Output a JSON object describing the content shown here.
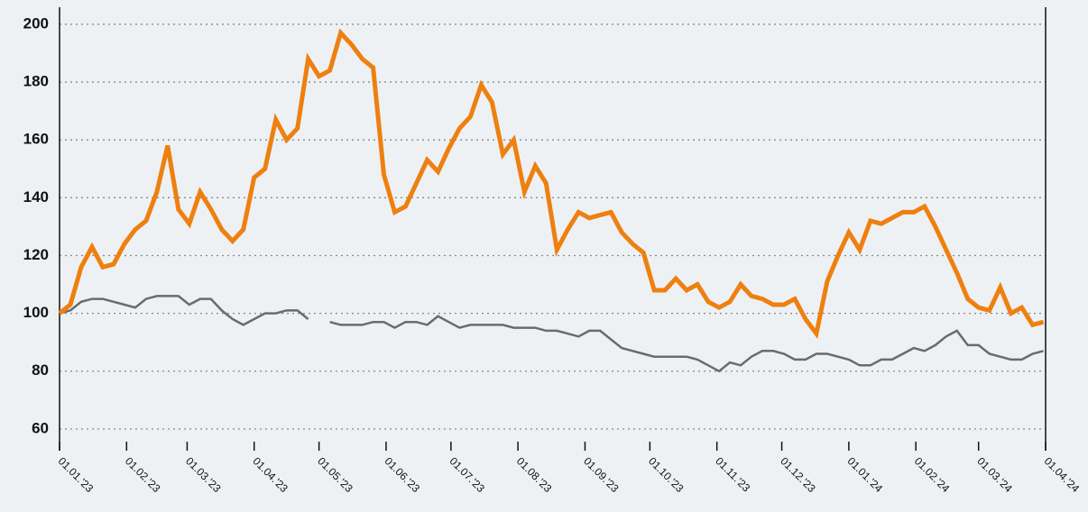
{
  "chart_data": {
    "type": "line",
    "x": [
      "2023-01-01",
      "2023-01-06",
      "2023-01-11",
      "2023-01-16",
      "2023-01-21",
      "2023-01-26",
      "2023-01-31",
      "2023-02-05",
      "2023-02-10",
      "2023-02-15",
      "2023-02-20",
      "2023-02-25",
      "2023-03-02",
      "2023-03-07",
      "2023-03-12",
      "2023-03-17",
      "2023-03-22",
      "2023-03-27",
      "2023-04-01",
      "2023-04-06",
      "2023-04-11",
      "2023-04-16",
      "2023-04-21",
      "2023-04-26",
      "2023-05-01",
      "2023-05-06",
      "2023-05-11",
      "2023-05-16",
      "2023-05-21",
      "2023-05-26",
      "2023-05-31",
      "2023-06-05",
      "2023-06-10",
      "2023-06-15",
      "2023-06-20",
      "2023-06-25",
      "2023-06-30",
      "2023-07-05",
      "2023-07-10",
      "2023-07-15",
      "2023-07-20",
      "2023-07-25",
      "2023-07-30",
      "2023-08-04",
      "2023-08-09",
      "2023-08-14",
      "2023-08-19",
      "2023-08-24",
      "2023-08-29",
      "2023-09-03",
      "2023-09-08",
      "2023-09-13",
      "2023-09-18",
      "2023-09-23",
      "2023-09-28",
      "2023-10-03",
      "2023-10-08",
      "2023-10-13",
      "2023-10-18",
      "2023-10-23",
      "2023-10-28",
      "2023-11-02",
      "2023-11-07",
      "2023-11-12",
      "2023-11-17",
      "2023-11-22",
      "2023-11-27",
      "2023-12-02",
      "2023-12-07",
      "2023-12-12",
      "2023-12-17",
      "2023-12-22",
      "2023-12-27",
      "2024-01-01",
      "2024-01-06",
      "2024-01-11",
      "2024-01-16",
      "2024-01-21",
      "2024-01-26",
      "2024-01-31",
      "2024-02-05",
      "2024-02-10",
      "2024-02-15",
      "2024-02-20",
      "2024-02-25",
      "2024-03-01",
      "2024-03-06",
      "2024-03-11",
      "2024-03-16",
      "2024-03-21",
      "2024-03-26",
      "2024-03-31"
    ],
    "series": [
      {
        "color": "#ee8010",
        "values": [
          100,
          103,
          116,
          123,
          116,
          117,
          124,
          129,
          132,
          142,
          158,
          136,
          131,
          142,
          136,
          129,
          125,
          129,
          147,
          150,
          167,
          160,
          164,
          188,
          182,
          184,
          197,
          193,
          188,
          185,
          148,
          135,
          137,
          145,
          153,
          149,
          157,
          164,
          168,
          179,
          173,
          155,
          160,
          142,
          151,
          145,
          122,
          129,
          135,
          133,
          134,
          135,
          128,
          124,
          121,
          108,
          108,
          112,
          108,
          110,
          104,
          102,
          104,
          110,
          106,
          105,
          103,
          103,
          105,
          98,
          93,
          111,
          120,
          128,
          122,
          132,
          131,
          133,
          135,
          135,
          137,
          130,
          122,
          114,
          105,
          102,
          101,
          109,
          100,
          102,
          96,
          97
        ]
      },
      {
        "color": "#6b6b6b",
        "values": [
          100,
          101,
          104,
          105,
          105,
          104,
          103,
          102,
          105,
          106,
          106,
          106,
          103,
          105,
          105,
          101,
          98,
          96,
          98,
          100,
          100,
          101,
          101,
          98,
          null,
          97,
          96,
          96,
          96,
          97,
          97,
          95,
          97,
          97,
          96,
          99,
          97,
          95,
          96,
          96,
          96,
          96,
          95,
          95,
          95,
          94,
          94,
          93,
          92,
          94,
          94,
          91,
          88,
          87,
          86,
          85,
          85,
          85,
          85,
          84,
          82,
          80,
          83,
          82,
          85,
          87,
          87,
          86,
          84,
          84,
          86,
          86,
          85,
          84,
          82,
          82,
          84,
          84,
          86,
          88,
          87,
          89,
          92,
          94,
          89,
          89,
          86,
          85,
          84,
          84,
          86,
          87
        ]
      }
    ],
    "xlim": [
      "2023-01-01",
      "2024-04-01"
    ],
    "xticks": [
      {
        "value": "2023-01-01",
        "label": "01.01.'23"
      },
      {
        "value": "2023-02-01",
        "label": "01.02.'23"
      },
      {
        "value": "2023-03-01",
        "label": "01.03.'23"
      },
      {
        "value": "2023-04-01",
        "label": "01.04.'23"
      },
      {
        "value": "2023-05-01",
        "label": "01.05.'23"
      },
      {
        "value": "2023-06-01",
        "label": "01.06.'23"
      },
      {
        "value": "2023-07-01",
        "label": "01.07.'23"
      },
      {
        "value": "2023-08-01",
        "label": "01.08.'23"
      },
      {
        "value": "2023-09-01",
        "label": "01.09.'23"
      },
      {
        "value": "2023-10-01",
        "label": "01.10.'23"
      },
      {
        "value": "2023-11-01",
        "label": "01.11.'23"
      },
      {
        "value": "2023-12-01",
        "label": "01.12.'23"
      },
      {
        "value": "2024-01-01",
        "label": "01.01.'24"
      },
      {
        "value": "2024-02-01",
        "label": "01.02.'24"
      },
      {
        "value": "2024-03-01",
        "label": "01.03.'24"
      },
      {
        "value": "2024-04-01",
        "label": "01.04.'24"
      }
    ],
    "ylim": [
      55.6,
      205.9
    ],
    "yticks": [
      60,
      80,
      100,
      120,
      140,
      160,
      180,
      200
    ],
    "grid": true
  }
}
